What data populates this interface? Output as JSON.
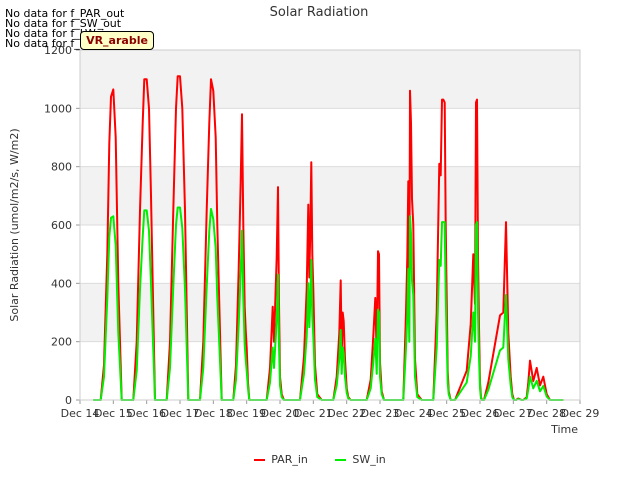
{
  "notices": [
    "No data for f_PAR_out",
    "No data for f_SW_out",
    "No data for f_LW_in",
    "No data for f_LW_out"
  ],
  "badge": "VR_arable",
  "colors": {
    "PAR_in": "#ff0000",
    "SW_in": "#00ee00",
    "plot_bg": "#f2f2f2",
    "grid": "#dcdcdc"
  },
  "chart_data": {
    "type": "line",
    "title": "Solar Radiation",
    "xlabel": "Time",
    "ylabel": "Solar Radiation (umol/m2/s, W/m2)",
    "xlim": [
      14,
      29
    ],
    "ylim": [
      0,
      1200
    ],
    "x_ticks": [
      "Dec 14",
      "Dec 15",
      "Dec 16",
      "Dec 17",
      "Dec 18",
      "Dec 19",
      "Dec 20",
      "Dec 21",
      "Dec 22",
      "Dec 23",
      "Dec 24",
      "Dec 25",
      "Dec 26",
      "Dec 27",
      "Dec 28",
      "Dec 29"
    ],
    "y_ticks": [
      0,
      200,
      400,
      600,
      800,
      1000,
      1200
    ],
    "series": [
      {
        "name": "PAR_in",
        "color": "#ff0000",
        "x": [
          14.4,
          14.62,
          14.72,
          14.82,
          14.88,
          14.93,
          15.0,
          15.07,
          15.15,
          15.25,
          15.6,
          15.7,
          15.8,
          15.88,
          15.93,
          16.0,
          16.07,
          16.13,
          16.25,
          16.6,
          16.7,
          16.8,
          16.88,
          16.93,
          17.0,
          17.07,
          17.15,
          17.25,
          17.6,
          17.7,
          17.8,
          17.88,
          17.93,
          18.0,
          18.07,
          18.12,
          18.25,
          18.6,
          18.68,
          18.76,
          18.82,
          18.86,
          18.9,
          18.94,
          18.97,
          19.0,
          19.04,
          19.08,
          19.15,
          19.25,
          19.6,
          19.7,
          19.78,
          19.82,
          19.86,
          19.9,
          19.94,
          19.97,
          20.0,
          20.05,
          20.12,
          20.25,
          20.6,
          20.72,
          20.8,
          20.85,
          20.88,
          20.91,
          20.94,
          20.97,
          21.0,
          21.05,
          21.12,
          21.25,
          21.6,
          21.7,
          21.78,
          21.82,
          21.85,
          21.88,
          21.91,
          21.95,
          22.0,
          22.05,
          22.12,
          22.25,
          22.6,
          22.72,
          22.8,
          22.86,
          22.9,
          22.94,
          22.97,
          23.0,
          23.05,
          23.12,
          23.25,
          23.6,
          23.7,
          23.78,
          23.82,
          23.85,
          23.88,
          23.9,
          23.93,
          23.96,
          24.0,
          24.05,
          24.12,
          24.25,
          24.6,
          24.7,
          24.78,
          24.82,
          24.86,
          24.9,
          24.94,
          24.97,
          25.0,
          25.03,
          25.06,
          25.12,
          25.25,
          25.6,
          25.72,
          25.8,
          25.85,
          25.88,
          25.91,
          25.94,
          25.97,
          26.0,
          26.03,
          26.06,
          26.12,
          26.25,
          26.6,
          26.7,
          26.78,
          26.85,
          26.92,
          26.97,
          27.02,
          27.08,
          27.15,
          27.25,
          27.3,
          27.4,
          27.45,
          27.5,
          27.6,
          27.7,
          27.8,
          27.9,
          28.0,
          28.1,
          28.2,
          28.3,
          28.4,
          28.5
        ],
        "y": [
          0,
          0,
          120,
          500,
          880,
          1040,
          1065,
          900,
          400,
          0,
          0,
          200,
          650,
          950,
          1100,
          1100,
          1000,
          700,
          0,
          0,
          200,
          650,
          1000,
          1110,
          1110,
          1000,
          650,
          0,
          0,
          200,
          650,
          950,
          1100,
          1060,
          900,
          600,
          0,
          0,
          120,
          450,
          750,
          980,
          600,
          320,
          240,
          180,
          60,
          0,
          0,
          0,
          0,
          110,
          320,
          200,
          340,
          490,
          730,
          330,
          80,
          20,
          0,
          0,
          0,
          150,
          380,
          670,
          420,
          580,
          815,
          500,
          380,
          120,
          20,
          0,
          0,
          80,
          230,
          410,
          150,
          300,
          270,
          140,
          40,
          10,
          0,
          0,
          0,
          70,
          220,
          350,
          150,
          510,
          500,
          130,
          30,
          0,
          0,
          0,
          0,
          300,
          490,
          750,
          330,
          1060,
          950,
          690,
          600,
          140,
          20,
          0,
          0,
          300,
          810,
          770,
          1030,
          1030,
          1020,
          600,
          350,
          100,
          30,
          0,
          0,
          100,
          260,
          500,
          330,
          1020,
          1030,
          500,
          250,
          60,
          10,
          0,
          0,
          60,
          290,
          300,
          610,
          230,
          80,
          20,
          0,
          0,
          5,
          0,
          0,
          10,
          60,
          135,
          65,
          110,
          50,
          80,
          20,
          0,
          0,
          0,
          0,
          0
        ]
      },
      {
        "name": "SW_in",
        "color": "#00ee00",
        "x": [
          14.4,
          14.62,
          14.72,
          14.82,
          14.88,
          14.93,
          15.0,
          15.07,
          15.15,
          15.25,
          15.6,
          15.7,
          15.8,
          15.88,
          15.93,
          16.0,
          16.07,
          16.13,
          16.25,
          16.6,
          16.7,
          16.8,
          16.88,
          16.93,
          17.0,
          17.07,
          17.15,
          17.25,
          17.6,
          17.7,
          17.8,
          17.88,
          17.93,
          18.0,
          18.07,
          18.12,
          18.25,
          18.6,
          18.68,
          18.76,
          18.82,
          18.86,
          18.9,
          18.94,
          18.97,
          19.0,
          19.04,
          19.08,
          19.15,
          19.25,
          19.6,
          19.7,
          19.78,
          19.82,
          19.86,
          19.9,
          19.94,
          19.97,
          20.0,
          20.05,
          20.12,
          20.25,
          20.6,
          20.72,
          20.8,
          20.85,
          20.88,
          20.91,
          20.94,
          20.97,
          21.0,
          21.05,
          21.12,
          21.25,
          21.6,
          21.7,
          21.78,
          21.82,
          21.85,
          21.88,
          21.91,
          21.95,
          22.0,
          22.05,
          22.12,
          22.25,
          22.6,
          22.72,
          22.8,
          22.86,
          22.9,
          22.94,
          22.97,
          23.0,
          23.05,
          23.12,
          23.25,
          23.6,
          23.7,
          23.78,
          23.82,
          23.85,
          23.88,
          23.9,
          23.93,
          23.96,
          24.0,
          24.05,
          24.12,
          24.25,
          24.6,
          24.7,
          24.78,
          24.82,
          24.86,
          24.9,
          24.94,
          24.97,
          25.0,
          25.03,
          25.06,
          25.12,
          25.25,
          25.6,
          25.72,
          25.8,
          25.85,
          25.88,
          25.91,
          25.94,
          25.97,
          26.0,
          26.03,
          26.06,
          26.12,
          26.25,
          26.6,
          26.7,
          26.78,
          26.85,
          26.92,
          26.97,
          27.02,
          27.08,
          27.15,
          27.25,
          27.3,
          27.4,
          27.45,
          27.5,
          27.6,
          27.7,
          27.8,
          27.9,
          28.0,
          28.1,
          28.2,
          28.3,
          28.4,
          28.5
        ],
        "y": [
          0,
          0,
          80,
          350,
          560,
          625,
          630,
          530,
          230,
          0,
          0,
          100,
          380,
          560,
          650,
          650,
          580,
          400,
          0,
          0,
          110,
          390,
          600,
          660,
          660,
          590,
          380,
          0,
          0,
          110,
          390,
          580,
          655,
          620,
          520,
          350,
          0,
          0,
          70,
          260,
          440,
          580,
          350,
          190,
          140,
          100,
          40,
          0,
          0,
          0,
          0,
          60,
          180,
          110,
          190,
          270,
          430,
          190,
          50,
          10,
          0,
          0,
          0,
          90,
          220,
          400,
          250,
          340,
          480,
          290,
          220,
          70,
          10,
          0,
          0,
          50,
          140,
          240,
          90,
          180,
          160,
          80,
          25,
          5,
          0,
          0,
          0,
          40,
          130,
          210,
          90,
          310,
          300,
          80,
          20,
          0,
          0,
          0,
          0,
          180,
          290,
          450,
          200,
          630,
          570,
          410,
          360,
          80,
          10,
          0,
          0,
          180,
          480,
          460,
          610,
          610,
          610,
          360,
          210,
          60,
          20,
          0,
          0,
          60,
          150,
          300,
          200,
          600,
          610,
          300,
          150,
          40,
          5,
          0,
          0,
          35,
          170,
          180,
          360,
          140,
          50,
          10,
          0,
          0,
          3,
          0,
          0,
          6,
          36,
          80,
          40,
          66,
          30,
          48,
          12,
          0,
          0,
          0,
          0,
          0
        ]
      }
    ]
  }
}
